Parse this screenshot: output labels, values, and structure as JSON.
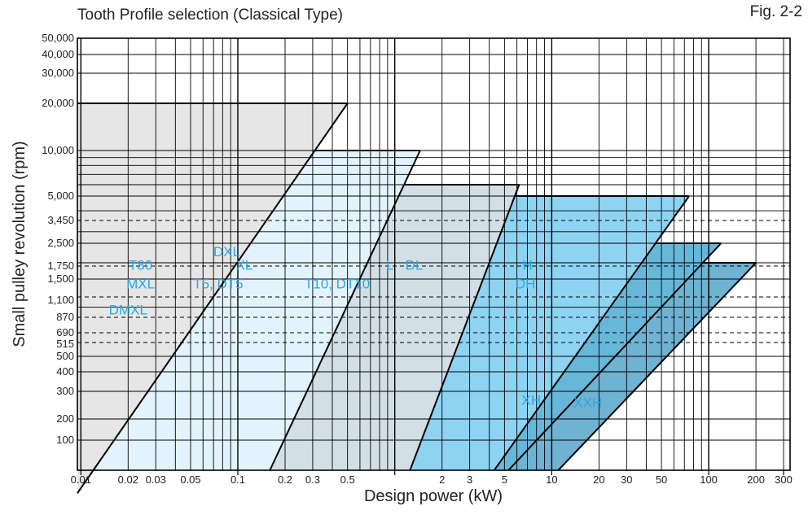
{
  "chart_data": {
    "type": "area",
    "title": "Tooth Profile selection (Classical Type)",
    "figure_label": "Fig. 2-2",
    "xlabel": "Design power (kW)",
    "ylabel": "Small pulley revolution (rpm)",
    "x_scale": "log",
    "grid": true,
    "x_ticks": [
      {
        "value": 0.01,
        "label": "0.01"
      },
      {
        "value": 0.02,
        "label": "0.02"
      },
      {
        "value": 0.03,
        "label": "0.03"
      },
      {
        "value": 0.05,
        "label": "0.05"
      },
      {
        "value": 0.1,
        "label": "0.1"
      },
      {
        "value": 0.2,
        "label": "0.2"
      },
      {
        "value": 0.3,
        "label": "0.3"
      },
      {
        "value": 0.5,
        "label": "0.5"
      },
      {
        "value": 2,
        "label": "2"
      },
      {
        "value": 3,
        "label": "3"
      },
      {
        "value": 5,
        "label": "5"
      },
      {
        "value": 10,
        "label": "10"
      },
      {
        "value": 20,
        "label": "20"
      },
      {
        "value": 30,
        "label": "30"
      },
      {
        "value": 50,
        "label": "50"
      },
      {
        "value": 100,
        "label": "100"
      },
      {
        "value": 200,
        "label": "200"
      },
      {
        "value": 300,
        "label": "300"
      }
    ],
    "y_ticks": [
      {
        "value": 100,
        "label": "100"
      },
      {
        "value": 200,
        "label": "200"
      },
      {
        "value": 300,
        "label": "300"
      },
      {
        "value": 400,
        "label": "400"
      },
      {
        "value": 500,
        "label": "500"
      },
      {
        "value": 515,
        "label": "515"
      },
      {
        "value": 690,
        "label": "690"
      },
      {
        "value": 870,
        "label": "870"
      },
      {
        "value": 1100,
        "label": "1,100"
      },
      {
        "value": 1500,
        "label": "1,500"
      },
      {
        "value": 1750,
        "label": "1,750"
      },
      {
        "value": 2500,
        "label": "2,500"
      },
      {
        "value": 3450,
        "label": "3,450"
      },
      {
        "value": 5000,
        "label": "5,000"
      },
      {
        "value": 10000,
        "label": "10,000"
      },
      {
        "value": 20000,
        "label": "20,000"
      },
      {
        "value": 30000,
        "label": "30,000"
      },
      {
        "value": 40000,
        "label": "40,000"
      },
      {
        "value": 50000,
        "label": "50,000"
      }
    ],
    "dashed_rpm_lines": [
      3450,
      1750,
      1150,
      870,
      690,
      580
    ],
    "bands": [
      {
        "labels": [
          "T80",
          "MXL",
          "DMXL"
        ],
        "max_rpm": 20000,
        "x_at_max_rpm": 0.5,
        "x_at_min_rpm": 0.012,
        "color": "#e6e6e6"
      },
      {
        "labels": [
          "DXL",
          "XL",
          "T5, DT5"
        ],
        "max_rpm": 10000,
        "x_at_max_rpm": 1.45,
        "x_at_min_rpm": 0.16,
        "color": "#e3f3fd"
      },
      {
        "labels": [
          "T10, DT10",
          "L",
          "DL"
        ],
        "max_rpm": 6000,
        "x_at_max_rpm": 6.2,
        "x_at_min_rpm": 1.25,
        "color": "#d2dfe6"
      },
      {
        "labels": [
          "H",
          "DH"
        ],
        "max_rpm": 5000,
        "x_at_max_rpm": 75,
        "x_at_min_rpm": 4.3,
        "color": "#8fd3f2"
      },
      {
        "labels": [
          "XH"
        ],
        "max_rpm": 2600,
        "x_at_max_rpm": 120,
        "x_at_min_rpm": 5.3,
        "color": "#67b7d9"
      },
      {
        "labels": [
          "XXH"
        ],
        "max_rpm": 2000,
        "x_at_max_rpm": 200,
        "x_at_min_rpm": 11,
        "color": "#6fb2d1"
      }
    ]
  }
}
